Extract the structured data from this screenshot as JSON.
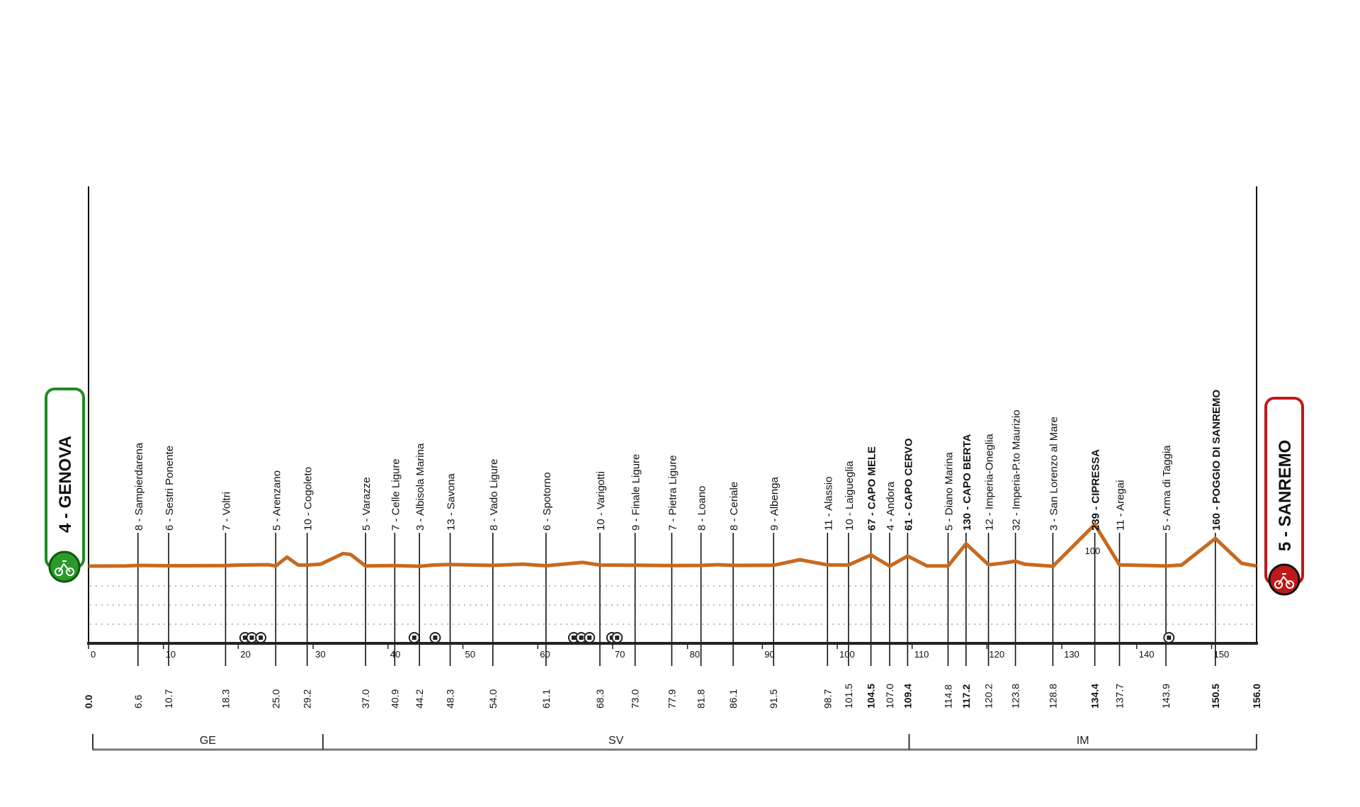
{
  "chart_data": {
    "type": "line",
    "title": "",
    "xlabel": "",
    "ylabel": "",
    "xlim": [
      0,
      156
    ],
    "x_ticks": [
      0,
      10,
      20,
      30,
      40,
      50,
      60,
      70,
      80,
      90,
      100,
      110,
      120,
      130,
      140,
      150
    ],
    "grid": true,
    "colors": {
      "profile": "#c8691e",
      "start": "#1f8a1f",
      "finish": "#c01818",
      "axis": "#111111"
    },
    "start": {
      "label": "4 - GENOVA",
      "km": 0.0,
      "km_label": "0.0",
      "icon": "bicycle-start-icon"
    },
    "finish": {
      "label": "5 - SANREMO",
      "km": 156.0,
      "km_label": "156.0",
      "icon": "bicycle-finish-icon"
    },
    "checkpoints": [
      {
        "km": 6.6,
        "km_label": "6.6",
        "label": "8 - Sampierdarena",
        "elev": 8,
        "bold": false
      },
      {
        "km": 10.7,
        "km_label": "10.7",
        "label": "6 - Sestri Ponente",
        "elev": 6,
        "bold": false
      },
      {
        "km": 18.3,
        "km_label": "18.3",
        "label": "7 - Voltri",
        "elev": 7,
        "bold": false
      },
      {
        "km": 25.0,
        "km_label": "25.0",
        "label": "5 - Arenzano",
        "elev": 5,
        "bold": false
      },
      {
        "km": 29.2,
        "km_label": "29.2",
        "label": "10 - Cogoleto",
        "elev": 10,
        "bold": false
      },
      {
        "km": 37.0,
        "km_label": "37.0",
        "label": "5 - Varazze",
        "elev": 5,
        "bold": false
      },
      {
        "km": 40.9,
        "km_label": "40.9",
        "label": "7 - Celle Ligure",
        "elev": 7,
        "bold": false
      },
      {
        "km": 44.2,
        "km_label": "44.2",
        "label": "3 - Albisola Marina",
        "elev": 3,
        "bold": false
      },
      {
        "km": 48.3,
        "km_label": "48.3",
        "label": "13 - Savona",
        "elev": 13,
        "bold": false
      },
      {
        "km": 54.0,
        "km_label": "54.0",
        "label": "8 - Vado Ligure",
        "elev": 8,
        "bold": false
      },
      {
        "km": 61.1,
        "km_label": "61.1",
        "label": "6 - Spotorno",
        "elev": 6,
        "bold": false
      },
      {
        "km": 68.3,
        "km_label": "68.3",
        "label": "10 - Varigotti",
        "elev": 10,
        "bold": false
      },
      {
        "km": 73.0,
        "km_label": "73.0",
        "label": "9 - Finale Ligure",
        "elev": 9,
        "bold": false
      },
      {
        "km": 77.9,
        "km_label": "77.9",
        "label": "7 - Pietra Ligure",
        "elev": 7,
        "bold": false
      },
      {
        "km": 81.8,
        "km_label": "81.8",
        "label": "8 - Loano",
        "elev": 8,
        "bold": false
      },
      {
        "km": 86.1,
        "km_label": "86.1",
        "label": "8 - Ceriale",
        "elev": 8,
        "bold": false
      },
      {
        "km": 91.5,
        "km_label": "91.5",
        "label": "9 - Albenga",
        "elev": 9,
        "bold": false
      },
      {
        "km": 98.7,
        "km_label": "98.7",
        "label": "11 - Alassio",
        "elev": 11,
        "bold": false
      },
      {
        "km": 101.5,
        "km_label": "101.5",
        "label": "10 - Laigueglia",
        "elev": 10,
        "bold": false
      },
      {
        "km": 104.5,
        "km_label": "104.5",
        "label": "67 - CAPO MELE",
        "elev": 67,
        "bold": true
      },
      {
        "km": 107.0,
        "km_label": "107.0",
        "label": "4 - Andora",
        "elev": 4,
        "bold": false
      },
      {
        "km": 109.4,
        "km_label": "109.4",
        "label": "61 - CAPO CERVO",
        "elev": 61,
        "bold": true
      },
      {
        "km": 114.8,
        "km_label": "114.8",
        "label": "5 - Diano Marina",
        "elev": 5,
        "bold": false
      },
      {
        "km": 117.2,
        "km_label": "117.2",
        "label": "130 - CAPO BERTA",
        "elev": 130,
        "bold": true
      },
      {
        "km": 120.2,
        "km_label": "120.2",
        "label": "12 - Imperia-Oneglia",
        "elev": 12,
        "bold": false
      },
      {
        "km": 123.8,
        "km_label": "123.8",
        "label": "32 - Imperia-P.to Maurizio",
        "elev": 32,
        "bold": false
      },
      {
        "km": 128.8,
        "km_label": "128.8",
        "label": "3 - San Lorenzo al Mare",
        "elev": 3,
        "bold": false
      },
      {
        "km": 134.4,
        "km_label": "134.4",
        "label": "239 - CIPRESSA",
        "elev": 239,
        "bold": true
      },
      {
        "km": 137.7,
        "km_label": "137.7",
        "label": "11 - Aregai",
        "elev": 11,
        "bold": false
      },
      {
        "km": 143.9,
        "km_label": "143.9",
        "label": "5 - Arma di Taggia",
        "elev": 5,
        "bold": false
      },
      {
        "km": 150.5,
        "km_label": "150.5",
        "label": "160 - POGGIO DI SANREMO",
        "elev": 160,
        "bold": true
      }
    ],
    "profile": [
      [
        0,
        4
      ],
      [
        5,
        5
      ],
      [
        6.6,
        8
      ],
      [
        10.7,
        6
      ],
      [
        18.3,
        7
      ],
      [
        20,
        10
      ],
      [
        24,
        12
      ],
      [
        25,
        5
      ],
      [
        26.5,
        55
      ],
      [
        28,
        10
      ],
      [
        29.2,
        10
      ],
      [
        31,
        15
      ],
      [
        34,
        75
      ],
      [
        35,
        70
      ],
      [
        37,
        5
      ],
      [
        40.9,
        7
      ],
      [
        44.2,
        3
      ],
      [
        46,
        10
      ],
      [
        48.3,
        13
      ],
      [
        54,
        8
      ],
      [
        58,
        15
      ],
      [
        61.1,
        6
      ],
      [
        66,
        25
      ],
      [
        68.3,
        10
      ],
      [
        73,
        9
      ],
      [
        77.9,
        7
      ],
      [
        81.8,
        8
      ],
      [
        84,
        12
      ],
      [
        86.1,
        8
      ],
      [
        91.5,
        9
      ],
      [
        95,
        40
      ],
      [
        98.7,
        11
      ],
      [
        101.5,
        10
      ],
      [
        104.5,
        67
      ],
      [
        107,
        4
      ],
      [
        109.4,
        61
      ],
      [
        112,
        5
      ],
      [
        114.8,
        5
      ],
      [
        117.2,
        130
      ],
      [
        120.2,
        12
      ],
      [
        122,
        20
      ],
      [
        123.8,
        32
      ],
      [
        125,
        15
      ],
      [
        128.8,
        3
      ],
      [
        134.4,
        239
      ],
      [
        137.7,
        11
      ],
      [
        143.9,
        5
      ],
      [
        146,
        10
      ],
      [
        150.5,
        160
      ],
      [
        154,
        20
      ],
      [
        156,
        5
      ]
    ],
    "annotations": [
      {
        "km": 134.4,
        "text": "100"
      }
    ],
    "markers": [
      {
        "km": 20.9,
        "icon": "circle-marker-icon"
      },
      {
        "km": 21.8,
        "icon": "circle-marker-icon"
      },
      {
        "km": 23.0,
        "icon": "circle-marker-icon"
      },
      {
        "km": 43.5,
        "icon": "circle-marker-icon"
      },
      {
        "km": 46.3,
        "icon": "circle-marker-icon"
      },
      {
        "km": 64.8,
        "icon": "circle-marker-icon"
      },
      {
        "km": 65.8,
        "icon": "circle-marker-icon"
      },
      {
        "km": 66.9,
        "icon": "circle-marker-icon"
      },
      {
        "km": 69.9,
        "icon": "circle-marker-icon"
      },
      {
        "km": 70.6,
        "icon": "circle-marker-icon"
      },
      {
        "km": 144.3,
        "icon": "circle-marker-icon"
      }
    ],
    "regions": [
      {
        "label": "GE",
        "from": 0,
        "to": 31.3
      },
      {
        "label": "SV",
        "from": 31.3,
        "to": 109.6
      },
      {
        "label": "IM",
        "from": 109.6,
        "to": 156
      }
    ]
  }
}
